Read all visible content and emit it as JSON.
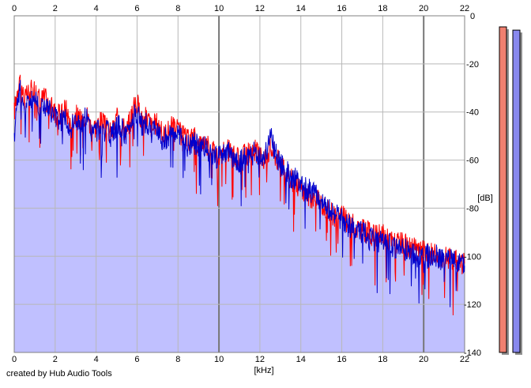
{
  "app": {
    "credit": "created by Hub Audio Tools"
  },
  "chart_data": {
    "type": "line",
    "xlabel": "[kHz]",
    "ylabel": "[dB]",
    "xlim": [
      0,
      22
    ],
    "ylim": [
      -140,
      0
    ],
    "x_ticks": [
      0,
      2,
      4,
      6,
      8,
      10,
      12,
      14,
      16,
      18,
      20,
      22
    ],
    "y_ticks": [
      0,
      -20,
      -40,
      -60,
      -80,
      -100,
      -120,
      -140
    ],
    "x_tick_labels": [
      "0",
      "2",
      "4",
      "6",
      "8",
      "10",
      "12",
      "14",
      "16",
      "18",
      "20",
      "22"
    ],
    "y_tick_labels": [
      "0",
      "-20",
      "-40",
      "-60",
      "-80",
      "-100",
      "-120",
      "-140"
    ],
    "grid": true,
    "x": [
      0,
      0.25,
      0.5,
      0.75,
      1,
      1.25,
      1.5,
      1.75,
      2,
      2.25,
      2.5,
      2.75,
      3,
      3.25,
      3.5,
      3.75,
      4,
      4.25,
      4.5,
      4.75,
      5,
      5.25,
      5.5,
      5.75,
      6,
      6.25,
      6.5,
      6.75,
      7,
      7.25,
      7.5,
      7.75,
      8,
      8.25,
      8.5,
      8.75,
      9,
      9.25,
      9.5,
      9.75,
      10,
      10.25,
      10.5,
      10.75,
      11,
      11.25,
      11.5,
      11.75,
      12,
      12.25,
      12.5,
      12.75,
      13,
      13.25,
      13.5,
      13.75,
      14,
      14.25,
      14.5,
      14.75,
      15,
      15.25,
      15.5,
      15.75,
      16,
      16.25,
      16.5,
      16.75,
      17,
      17.25,
      17.5,
      17.75,
      18,
      18.25,
      18.5,
      18.75,
      19,
      19.25,
      19.5,
      19.75,
      20,
      20.25,
      20.5,
      20.75,
      21,
      21.25,
      21.5,
      21.75,
      22
    ],
    "series": [
      {
        "color": "#ff0000",
        "values": [
          -40,
          -25,
          -35,
          -32,
          -30,
          -35,
          -34,
          -38,
          -40,
          -42,
          -38,
          -45,
          -41,
          -44,
          -40,
          -46,
          -46,
          -44,
          -47,
          -49,
          -43,
          -45,
          -48,
          -40,
          -36,
          -44,
          -42,
          -47,
          -44,
          -50,
          -48,
          -46,
          -48,
          -50,
          -52,
          -50,
          -54,
          -52,
          -55,
          -56,
          -58,
          -57,
          -56,
          -59,
          -60,
          -58,
          -57,
          -56,
          -58,
          -60,
          -55,
          -58,
          -62,
          -66,
          -68,
          -69,
          -72,
          -74,
          -75,
          -77,
          -78,
          -80,
          -82,
          -84,
          -83,
          -86,
          -87,
          -88,
          -89,
          -90,
          -91,
          -92,
          -91,
          -93,
          -94,
          -95,
          -95,
          -96,
          -97,
          -98,
          -98,
          -99,
          -98,
          -100,
          -100,
          -101,
          -101,
          -102,
          -103
        ]
      },
      {
        "color": "#0000cc",
        "values": [
          -45,
          -30,
          -38,
          -35,
          -34,
          -38,
          -37,
          -40,
          -42,
          -44,
          -41,
          -47,
          -43,
          -46,
          -42,
          -48,
          -48,
          -46,
          -48,
          -51,
          -45,
          -47,
          -50,
          -43,
          -40,
          -46,
          -45,
          -49,
          -46,
          -52,
          -50,
          -48,
          -50,
          -52,
          -54,
          -52,
          -55,
          -54,
          -57,
          -58,
          -59,
          -58,
          -57,
          -60,
          -61,
          -59,
          -58,
          -57,
          -59,
          -58,
          -50,
          -56,
          -62,
          -64,
          -67,
          -68,
          -70,
          -72,
          -73,
          -75,
          -76,
          -79,
          -81,
          -83,
          -84,
          -87,
          -88,
          -89,
          -90,
          -92,
          -93,
          -94,
          -93,
          -95,
          -96,
          -97,
          -97,
          -98,
          -99,
          -100,
          -99,
          -100,
          -99,
          -101,
          -101,
          -102,
          -102,
          -103,
          -104
        ]
      }
    ],
    "fill_color": "#c0c0ff"
  },
  "level_meters": [
    {
      "name": "left-channel-meter",
      "color": "#f08070",
      "level_fraction": 1.0
    },
    {
      "name": "right-channel-meter",
      "color": "#8888ee",
      "level_fraction": 0.99
    }
  ]
}
